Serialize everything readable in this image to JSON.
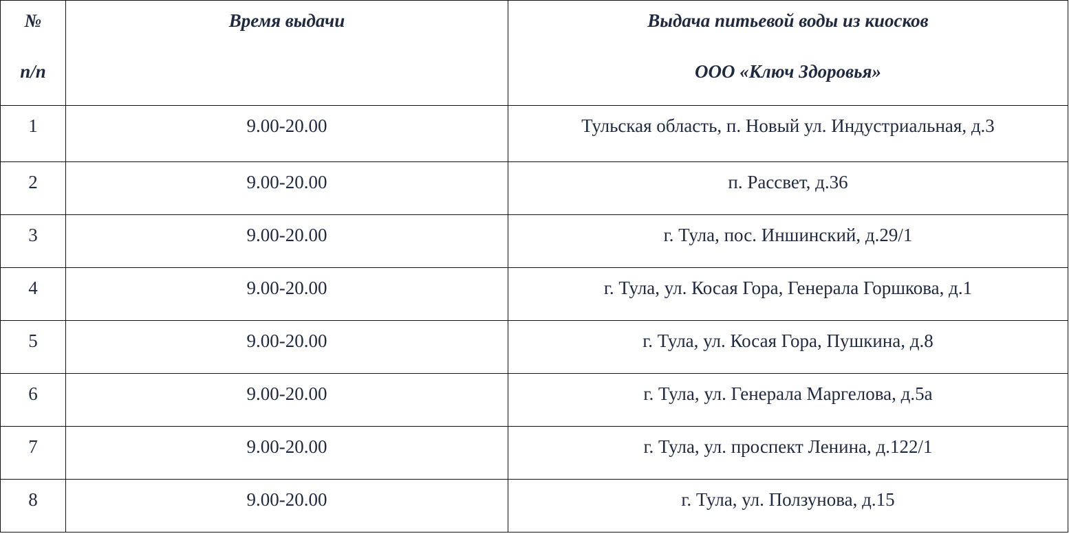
{
  "table": {
    "headers": {
      "num_line1": "№",
      "num_line2": "п/п",
      "time": "Время выдачи",
      "place_line1": "Выдача питьевой воды из киосков",
      "place_line2": "ООО «Ключ Здоровья»"
    },
    "rows": [
      {
        "num": "1",
        "time": "9.00-20.00",
        "address": "Тульская область, п. Новый ул. Индустриальная, д.3"
      },
      {
        "num": "2",
        "time": "9.00-20.00",
        "address": "п.  Рассвет, д.36"
      },
      {
        "num": "3",
        "time": "9.00-20.00",
        "address": "г. Тула, пос. Иншинский, д.29/1"
      },
      {
        "num": "4",
        "time": "9.00-20.00",
        "address": "г. Тула, ул.  Косая Гора, Генерала Горшкова, д.1"
      },
      {
        "num": "5",
        "time": "9.00-20.00",
        "address": "г. Тула, ул.  Косая Гора, Пушкина, д.8"
      },
      {
        "num": "6",
        "time": "9.00-20.00",
        "address": "г. Тула, ул.  Генерала Маргелова, д.5а"
      },
      {
        "num": "7",
        "time": "9.00-20.00",
        "address": "г. Тула, ул.  проспект Ленина, д.122/1"
      },
      {
        "num": "8",
        "time": "9.00-20.00",
        "address": "г. Тула, ул.  Ползунова, д.15"
      }
    ]
  },
  "colors": {
    "text": "#1f2940",
    "border": "#111111"
  }
}
